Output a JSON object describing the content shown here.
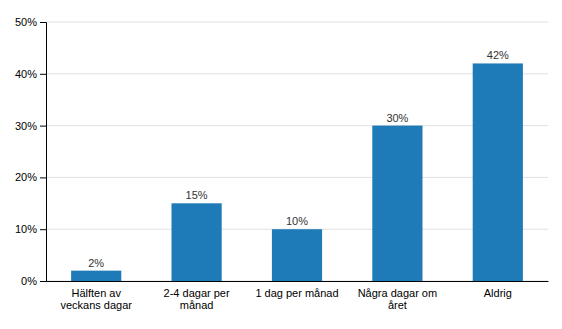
{
  "chart_data": {
    "type": "bar",
    "categories": [
      "Hälften av\nveckans dagar",
      "2-4 dagar per\nmånad",
      "1 dag per månad",
      "Några dagar om\nåret",
      "Aldrig"
    ],
    "values": [
      2,
      15,
      10,
      30,
      42
    ],
    "value_labels": [
      "2%",
      "15%",
      "10%",
      "30%",
      "42%"
    ],
    "data_labels": true,
    "color": "#1f7bb8",
    "ylim": [
      0,
      50
    ],
    "yticks": [
      {
        "value": 0,
        "label": "0%"
      },
      {
        "value": 10,
        "label": "10%"
      },
      {
        "value": 20,
        "label": "20%"
      },
      {
        "value": 30,
        "label": "30%"
      },
      {
        "value": 40,
        "label": "40%"
      },
      {
        "value": 50,
        "label": "50%"
      }
    ],
    "grid": true
  }
}
